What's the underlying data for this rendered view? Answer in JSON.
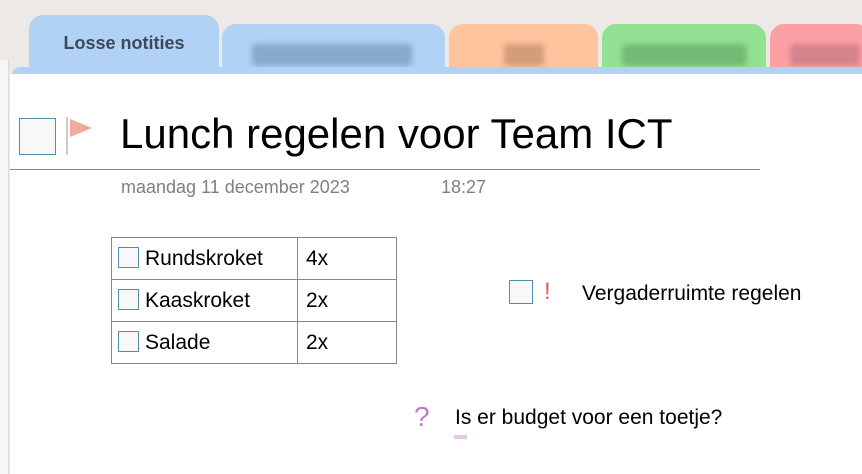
{
  "tabs": [
    {
      "label": "Losse notities",
      "color": "#b1d1f5",
      "active": true
    },
    {
      "label": "",
      "color": "#b1d1f5"
    },
    {
      "label": "",
      "color": "#fdc49e"
    },
    {
      "label": "",
      "color": "#93e294"
    },
    {
      "label": "",
      "color": "#fda0a5"
    }
  ],
  "page": {
    "title": "Lunch regelen voor Team ICT",
    "date": "maandag 11 december 2023",
    "time": "18:27",
    "table": [
      {
        "item": "Rundskroket",
        "qty": "4x"
      },
      {
        "item": "Kaaskroket",
        "qty": "2x"
      },
      {
        "item": "Salade",
        "qty": "2x"
      }
    ],
    "todo_important": {
      "tag": "!",
      "text": "Vergaderruimte regelen"
    },
    "question": {
      "tag": "?",
      "text": "Is er budget voor een toetje?"
    }
  }
}
